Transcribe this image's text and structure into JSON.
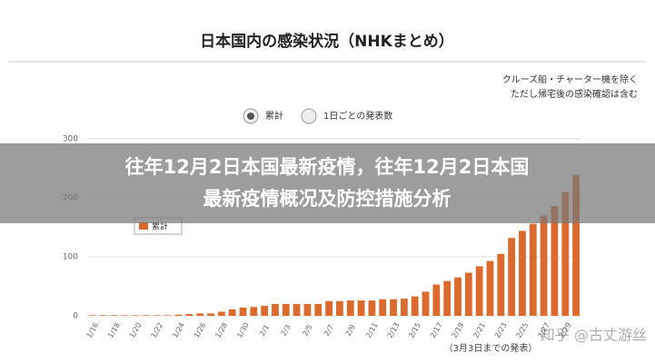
{
  "banner": {
    "lines": [
      "往年12月2日本国最新疫情，往年12月2日本国",
      "最新疫情概况及防控措施分析"
    ]
  },
  "chart_data": {
    "type": "bar",
    "title": "日本国内の感染状況（NHKまとめ）",
    "notes": [
      "クルーズ船・チャーター機を除く",
      "ただし帰宅後の感染確認は含む"
    ],
    "options": [
      "累計",
      "1日ごとの発表数"
    ],
    "footnote": "（3月3日までの発表）",
    "watermark": "知乎 @古丈游丝",
    "series": [
      {
        "name": "累計",
        "color": "#dc6a2c",
        "values": [
          1,
          1,
          1,
          1,
          1,
          1,
          1,
          1,
          2,
          3,
          4,
          4,
          7,
          11,
          14,
          15,
          17,
          20,
          20,
          20,
          20,
          20,
          25,
          25,
          26,
          26,
          26,
          28,
          28,
          29,
          33,
          41,
          53,
          59,
          65,
          73,
          84,
          93,
          105,
          132,
          144,
          156,
          170,
          186,
          210,
          239
        ]
      }
    ],
    "categories": [
      "1/16",
      null,
      "1/18",
      null,
      "1/20",
      null,
      "1/22",
      null,
      "1/24",
      null,
      "1/26",
      null,
      "1/28",
      null,
      "1/30",
      null,
      "2/1",
      null,
      "2/3",
      null,
      "2/5",
      null,
      "2/7",
      null,
      "2/9",
      null,
      "2/11",
      null,
      "2/13",
      null,
      "2/15",
      null,
      "2/17",
      null,
      "2/19",
      null,
      "2/21",
      null,
      "2/23",
      null,
      "2/25",
      null,
      "2/27",
      null,
      "2/29",
      null
    ],
    "ylim": [
      0,
      300
    ],
    "yticks": [
      0,
      100,
      200,
      300
    ],
    "grid": true
  }
}
